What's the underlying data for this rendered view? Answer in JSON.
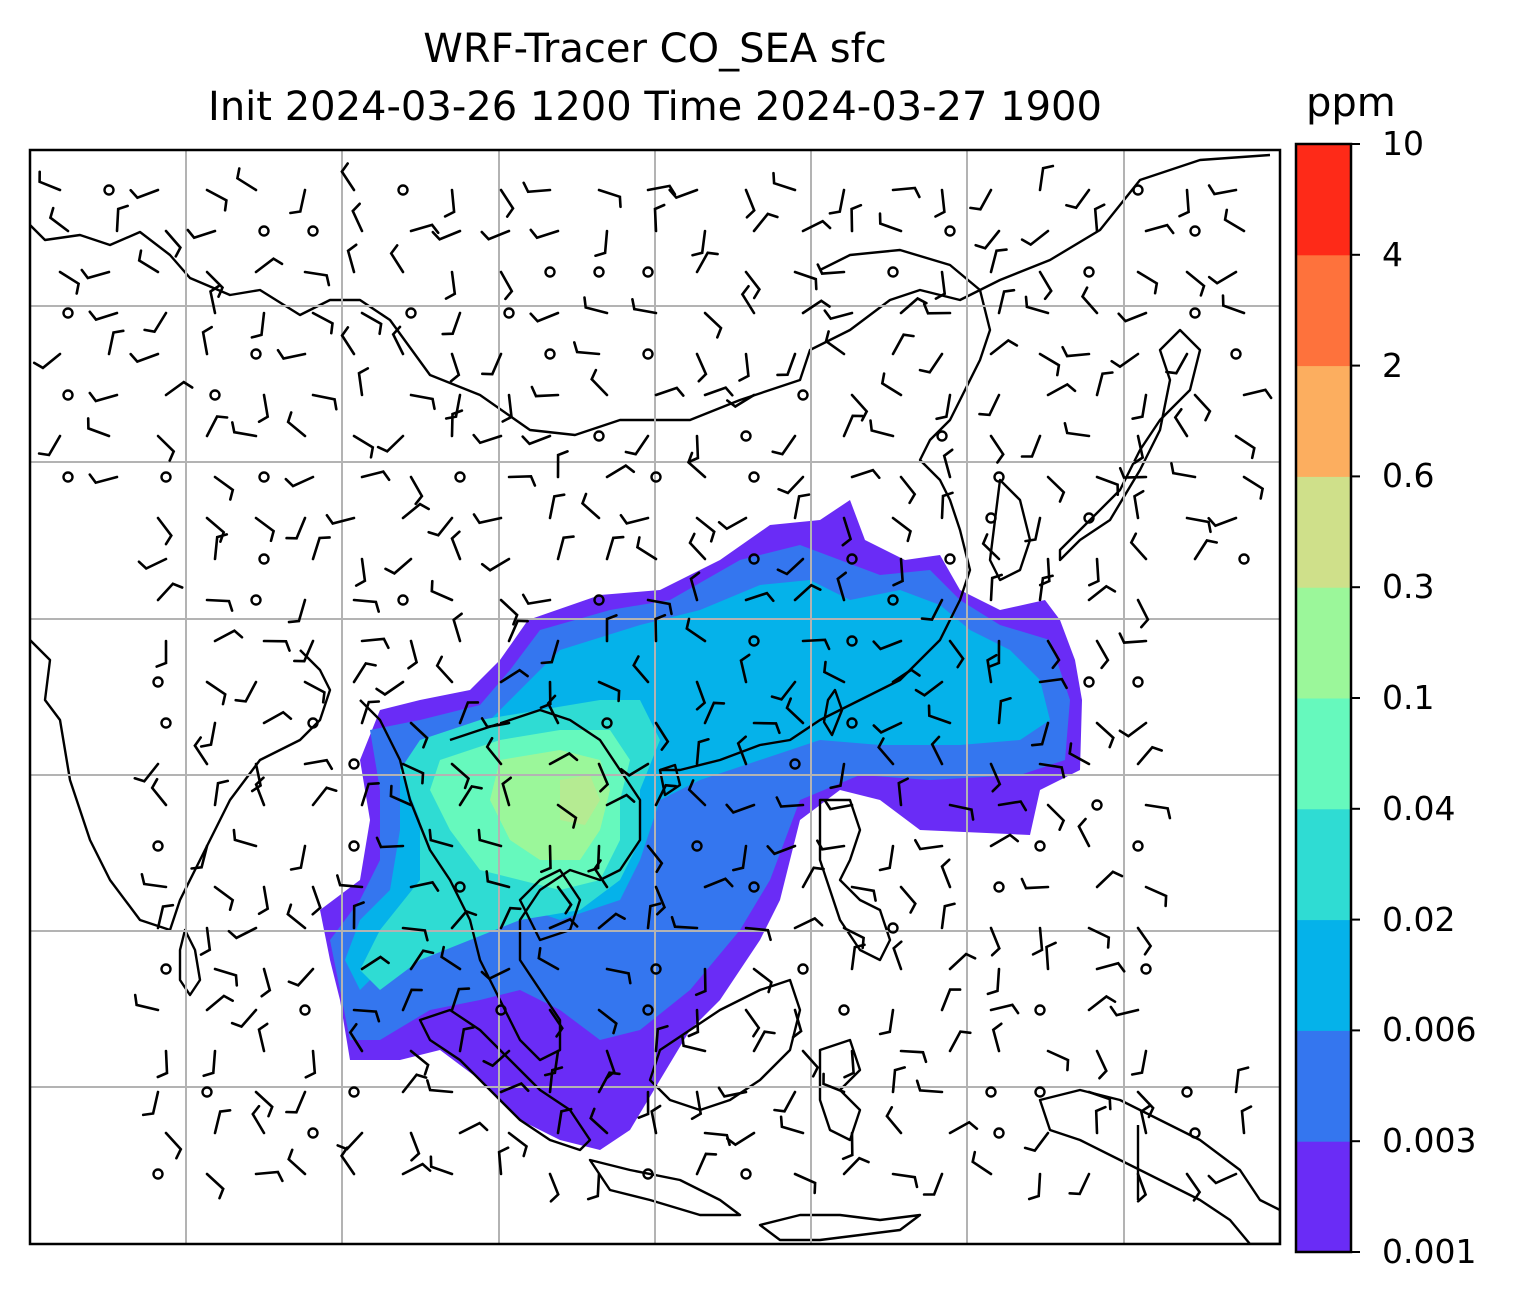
{
  "title": {
    "line1": "WRF-Tracer CO_SEA sfc",
    "line2": "Init 2024-03-26 1200 Time 2024-03-27 1900"
  },
  "colorbar": {
    "unit": "ppm",
    "levels": [
      "0.001",
      "0.003",
      "0.006",
      "0.02",
      "0.04",
      "0.1",
      "0.3",
      "0.6",
      "2",
      "4",
      "10"
    ],
    "colors": [
      "#6a2cf6",
      "#3476ef",
      "#05b2ea",
      "#2fdcd3",
      "#66f9bd",
      "#9bf79a",
      "#cfe08a",
      "#fcae5f",
      "#fe723c",
      "#fe2a18"
    ]
  },
  "map": {
    "region": "East and Southeast Asia",
    "gridlines": true,
    "coastlines": true,
    "wind_barbs": true,
    "tracer_colors": {
      "lowest": "#6a2cf6",
      "low": "#3476ef",
      "mid": "#05b2ea",
      "mid2": "#2fdcd3",
      "high": "#66f9bd",
      "higher": "#9bf79a"
    }
  }
}
